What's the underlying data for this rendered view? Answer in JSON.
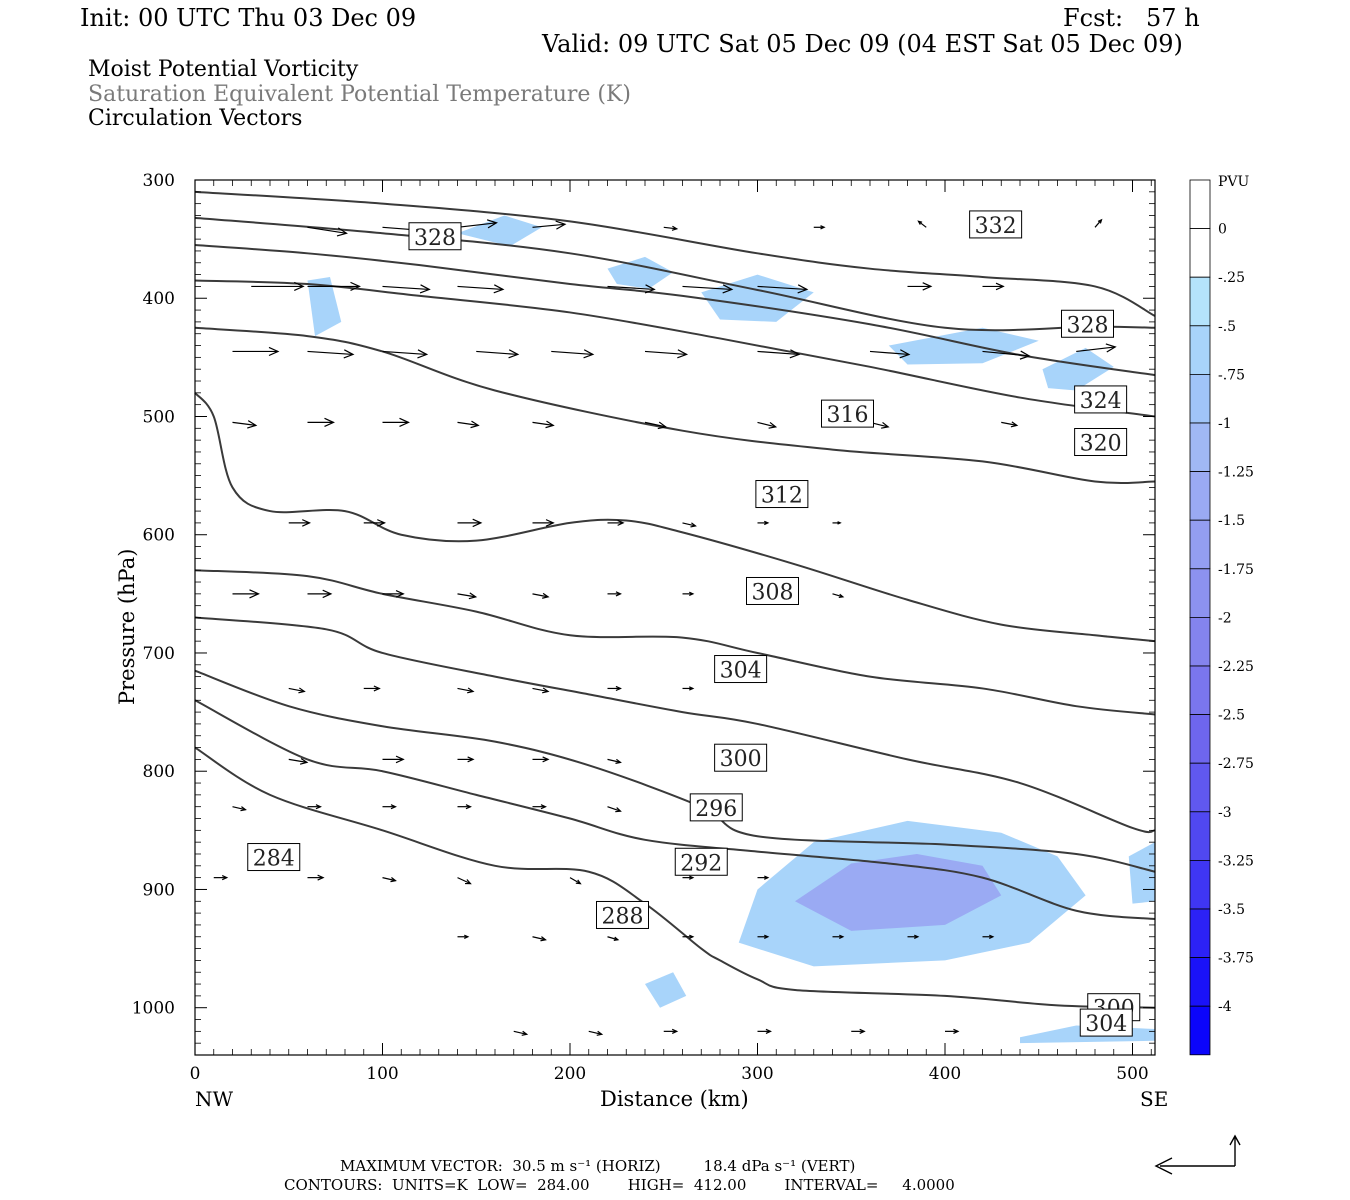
{
  "header": {
    "init": "Init: 00 UTC Thu 03 Dec 09",
    "fcst": "Fcst:   57 h",
    "valid": "Valid: 09 UTC Sat 05 Dec 09 (04 EST Sat 05 Dec 09)"
  },
  "fields": {
    "line1": "Moist Potential Vorticity",
    "line2": "Saturation Equivalent Potential Temperature (K)",
    "line3": "Circulation Vectors"
  },
  "footer": {
    "max_vector": "MAXIMUM VECTOR:  30.5 m s⁻¹ (HORIZ)         18.4 dPa s⁻¹ (VERT)",
    "contours": "CONTOURS:  UNITS=K  LOW=  284.00        HIGH=  412.00        INTERVAL=     4.0000"
  },
  "colors": {
    "contour": "#3a3a3a",
    "shade_light": "#b4e3fb",
    "shade_mid": "#a0b8f5",
    "shade_dark": "#8c96ee"
  },
  "chart_data": {
    "type": "cross-section",
    "xlabel": "Distance (km)",
    "ylabel": "Pressure (hPa)",
    "xlim": [
      0,
      512
    ],
    "ylim": [
      1040,
      300
    ],
    "x_ticks": [
      0,
      100,
      200,
      300,
      400,
      500
    ],
    "y_ticks": [
      300,
      400,
      500,
      600,
      700,
      800,
      900,
      1000
    ],
    "x_end_labels": {
      "left": "NW",
      "right": "SE"
    },
    "colorbar": {
      "unit": "PVU",
      "levels": [
        "0",
        "-.25",
        "-.5",
        "-.75",
        "-1",
        "-1.25",
        "-1.5",
        "-1.75",
        "-2",
        "-2.25",
        "-2.5",
        "-2.75",
        "-3",
        "-3.25",
        "-3.5",
        "-3.75",
        "-4"
      ],
      "colors": [
        "#ffffff",
        "#ffffff",
        "#b4e3fb",
        "#a8d4fa",
        "#a0c4f8",
        "#a0b8f5",
        "#9aaaf3",
        "#939ef1",
        "#8c92ef",
        "#8484ee",
        "#7a76ed",
        "#6e66ee",
        "#6058ef",
        "#5048f1",
        "#3f36f3",
        "#2c22f6",
        "#1a12f8",
        "#0b05fb"
      ]
    },
    "contour_labels": [
      {
        "text": "328",
        "x": 128,
        "p": 348
      },
      {
        "text": "332",
        "x": 427,
        "p": 338
      },
      {
        "text": "328",
        "x": 476,
        "p": 422
      },
      {
        "text": "324",
        "x": 483,
        "p": 486
      },
      {
        "text": "320",
        "x": 483,
        "p": 522
      },
      {
        "text": "316",
        "x": 348,
        "p": 498
      },
      {
        "text": "312",
        "x": 313,
        "p": 566
      },
      {
        "text": "308",
        "x": 308,
        "p": 648
      },
      {
        "text": "304",
        "x": 291,
        "p": 714
      },
      {
        "text": "300",
        "x": 291,
        "p": 789
      },
      {
        "text": "296",
        "x": 278,
        "p": 831
      },
      {
        "text": "292",
        "x": 270,
        "p": 877
      },
      {
        "text": "284",
        "x": 42,
        "p": 873
      },
      {
        "text": "288",
        "x": 228,
        "p": 922
      },
      {
        "text": "300",
        "x": 490,
        "p": 1000
      },
      {
        "text": "304",
        "x": 486,
        "p": 1013
      }
    ],
    "isentropes": [
      [
        [
          0,
          310
        ],
        [
          100,
          320
        ],
        [
          200,
          335
        ],
        [
          300,
          362
        ],
        [
          360,
          375
        ],
        [
          420,
          382
        ],
        [
          480,
          390
        ],
        [
          512,
          415
        ]
      ],
      [
        [
          0,
          332
        ],
        [
          100,
          345
        ],
        [
          200,
          362
        ],
        [
          300,
          393
        ],
        [
          400,
          425
        ],
        [
          480,
          424
        ],
        [
          512,
          425
        ]
      ],
      [
        [
          0,
          355
        ],
        [
          60,
          362
        ],
        [
          120,
          372
        ],
        [
          200,
          388
        ],
        [
          260,
          398
        ],
        [
          360,
          422
        ],
        [
          440,
          448
        ],
        [
          512,
          465
        ]
      ],
      [
        [
          0,
          385
        ],
        [
          60,
          388
        ],
        [
          120,
          398
        ],
        [
          200,
          412
        ],
        [
          280,
          434
        ],
        [
          360,
          458
        ],
        [
          440,
          484
        ],
        [
          512,
          500
        ]
      ],
      [
        [
          0,
          425
        ],
        [
          60,
          432
        ],
        [
          100,
          445
        ],
        [
          160,
          478
        ],
        [
          260,
          512
        ],
        [
          340,
          528
        ],
        [
          420,
          538
        ],
        [
          480,
          555
        ],
        [
          512,
          555
        ]
      ],
      [
        [
          0,
          480
        ],
        [
          10,
          500
        ],
        [
          20,
          560
        ],
        [
          40,
          580
        ],
        [
          80,
          580
        ],
        [
          110,
          600
        ],
        [
          150,
          605
        ],
        [
          200,
          590
        ],
        [
          230,
          588
        ],
        [
          260,
          598
        ],
        [
          320,
          625
        ],
        [
          380,
          655
        ],
        [
          430,
          676
        ],
        [
          480,
          685
        ],
        [
          512,
          690
        ]
      ],
      [
        [
          0,
          630
        ],
        [
          60,
          635
        ],
        [
          100,
          650
        ],
        [
          150,
          665
        ],
        [
          200,
          685
        ],
        [
          260,
          687
        ],
        [
          300,
          700
        ],
        [
          360,
          720
        ],
        [
          420,
          730
        ],
        [
          470,
          745
        ],
        [
          512,
          752
        ]
      ],
      [
        [
          0,
          670
        ],
        [
          70,
          680
        ],
        [
          100,
          700
        ],
        [
          160,
          720
        ],
        [
          210,
          735
        ],
        [
          260,
          750
        ],
        [
          300,
          760
        ],
        [
          380,
          790
        ],
        [
          440,
          810
        ],
        [
          500,
          848
        ],
        [
          512,
          850
        ]
      ],
      [
        [
          0,
          715
        ],
        [
          50,
          745
        ],
        [
          100,
          762
        ],
        [
          160,
          775
        ],
        [
          210,
          795
        ],
        [
          270,
          830
        ],
        [
          300,
          855
        ],
        [
          400,
          862
        ],
        [
          470,
          870
        ],
        [
          512,
          885
        ]
      ],
      [
        [
          0,
          740
        ],
        [
          60,
          790
        ],
        [
          100,
          800
        ],
        [
          150,
          820
        ],
        [
          200,
          840
        ],
        [
          240,
          858
        ],
        [
          300,
          868
        ],
        [
          370,
          878
        ],
        [
          420,
          890
        ],
        [
          470,
          918
        ],
        [
          512,
          925
        ]
      ],
      [
        [
          0,
          780
        ],
        [
          40,
          820
        ],
        [
          100,
          850
        ],
        [
          160,
          880
        ],
        [
          210,
          885
        ],
        [
          240,
          912
        ],
        [
          270,
          950
        ],
        [
          280,
          960
        ],
        [
          300,
          976
        ],
        [
          320,
          985
        ],
        [
          400,
          990
        ],
        [
          460,
          998
        ],
        [
          512,
          1000
        ]
      ]
    ],
    "shade_areas": [
      {
        "level": "-.5",
        "pts": [
          [
            300,
            900
          ],
          [
            330,
            860
          ],
          [
            380,
            842
          ],
          [
            430,
            852
          ],
          [
            460,
            872
          ],
          [
            475,
            905
          ],
          [
            445,
            945
          ],
          [
            400,
            960
          ],
          [
            330,
            965
          ],
          [
            290,
            945
          ]
        ]
      },
      {
        "level": "-1.25",
        "pts": [
          [
            320,
            910
          ],
          [
            350,
            878
          ],
          [
            385,
            870
          ],
          [
            420,
            880
          ],
          [
            430,
            905
          ],
          [
            400,
            930
          ],
          [
            350,
            935
          ]
        ]
      },
      {
        "level": "-.5",
        "pts": [
          [
            270,
            395
          ],
          [
            300,
            380
          ],
          [
            330,
            395
          ],
          [
            310,
            420
          ],
          [
            280,
            418
          ]
        ]
      },
      {
        "level": "-.5",
        "pts": [
          [
            370,
            440
          ],
          [
            420,
            425
          ],
          [
            450,
            436
          ],
          [
            420,
            455
          ],
          [
            380,
            456
          ]
        ]
      },
      {
        "level": "-.5",
        "pts": [
          [
            452,
            460
          ],
          [
            475,
            442
          ],
          [
            490,
            458
          ],
          [
            470,
            478
          ],
          [
            455,
            476
          ]
        ]
      },
      {
        "level": "-.5",
        "pts": [
          [
            220,
            375
          ],
          [
            240,
            365
          ],
          [
            255,
            378
          ],
          [
            242,
            392
          ],
          [
            225,
            388
          ]
        ]
      },
      {
        "level": "-.5",
        "pts": [
          [
            140,
            345
          ],
          [
            165,
            330
          ],
          [
            185,
            340
          ],
          [
            168,
            356
          ]
        ]
      },
      {
        "level": "-.5",
        "pts": [
          [
            60,
            385
          ],
          [
            72,
            382
          ],
          [
            78,
            420
          ],
          [
            64,
            432
          ]
        ]
      },
      {
        "level": "-.5",
        "pts": [
          [
            498,
            872
          ],
          [
            512,
            860
          ],
          [
            512,
            910
          ],
          [
            500,
            912
          ]
        ]
      },
      {
        "level": "-.5",
        "pts": [
          [
            240,
            980
          ],
          [
            255,
            970
          ],
          [
            262,
            990
          ],
          [
            248,
            1000
          ]
        ]
      },
      {
        "level": "-.5",
        "pts": [
          [
            440,
            1025
          ],
          [
            470,
            1015
          ],
          [
            512,
            1018
          ],
          [
            512,
            1028
          ],
          [
            440,
            1030
          ]
        ]
      }
    ]
  }
}
